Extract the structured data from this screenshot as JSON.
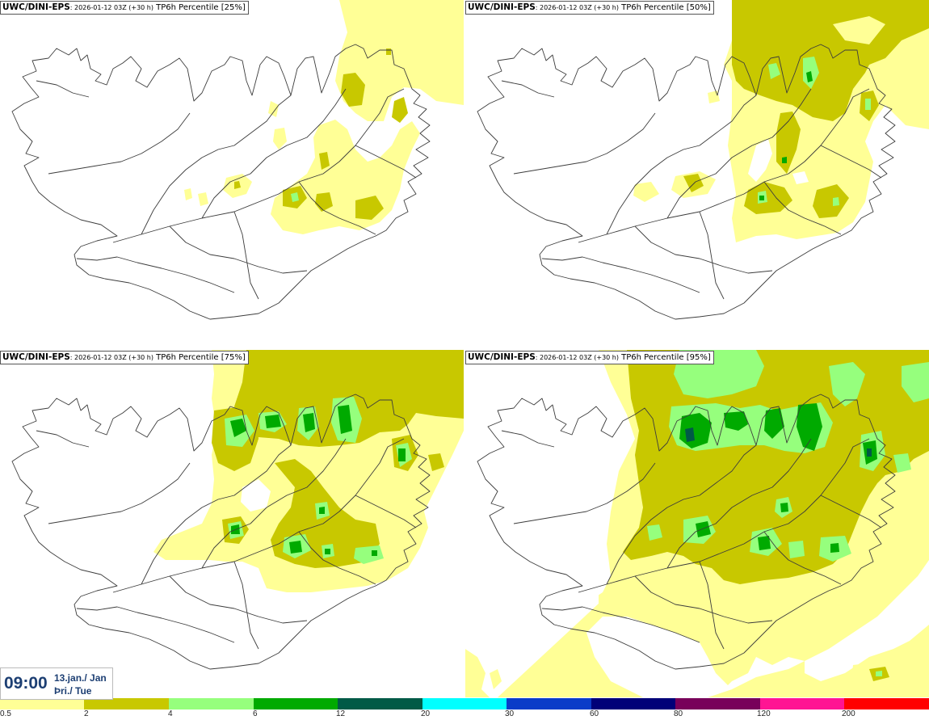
{
  "panels": [
    {
      "model": "UWC/DINI-EPS",
      "run": ": 2026-01-12 03Z (+30 h)",
      "field": " TP6h Percentile [25%]"
    },
    {
      "model": "UWC/DINI-EPS",
      "run": ": 2026-01-12 03Z (+30 h)",
      "field": " TP6h Percentile [50%]"
    },
    {
      "model": "UWC/DINI-EPS",
      "run": ": 2026-01-12 03Z (+30 h)",
      "field": " TP6h Percentile [75%]"
    },
    {
      "model": "UWC/DINI-EPS",
      "run": ": 2026-01-12 03Z (+30 h)",
      "field": " TP6h Percentile [95%]"
    }
  ],
  "valid_time": {
    "time": "09:00",
    "date": "13.jan./ Jan",
    "weekday": "Þri./ Tue"
  },
  "legend": {
    "labels": [
      "0.5",
      "2",
      "4",
      "6",
      "12",
      "20",
      "30",
      "60",
      "80",
      "120",
      "200"
    ],
    "colors": [
      "#ffff96",
      "#c8c800",
      "#96ff7d",
      "#00aa00",
      "#005a46",
      "#00ffff",
      "#0a3cc8",
      "#000078",
      "#78005a",
      "#ff1493",
      "#ff0000"
    ]
  }
}
